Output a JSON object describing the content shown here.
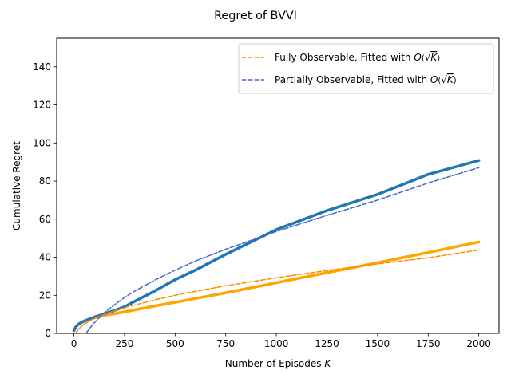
{
  "chart_data": {
    "type": "line",
    "title": "Regret of BVVI",
    "xlabel": "Number of Episodes",
    "xlabel_var": "K",
    "ylabel": "Cumulative Regret",
    "xlim": [
      -85,
      2100
    ],
    "ylim": [
      0,
      155
    ],
    "xticks": [
      0,
      250,
      500,
      750,
      1000,
      1250,
      1500,
      1750,
      2000
    ],
    "yticks": [
      0,
      20,
      40,
      60,
      80,
      100,
      120,
      140
    ],
    "grid": false,
    "legend_position": "top-right",
    "legend": [
      {
        "prefix": "Fully Observable, Fitted with ",
        "o": "O",
        "k": "K",
        "color": "#ff8c00",
        "style": "dashed"
      },
      {
        "prefix": "Partially Observable, Fitted with ",
        "o": "O",
        "k": "K",
        "color": "#4169c8",
        "style": "dashed"
      }
    ],
    "series": [
      {
        "kind": "observed",
        "color": "#ffa500",
        "x": [
          0,
          10,
          25,
          50,
          75,
          100,
          150,
          200,
          250,
          300,
          400,
          500,
          600,
          750,
          1000,
          1250,
          1500,
          1750,
          2000
        ],
        "y": [
          1.5,
          3.5,
          5.0,
          6.3,
          7.3,
          8.1,
          9.4,
          10.3,
          11.3,
          12.3,
          14.4,
          16.3,
          18.3,
          21.3,
          26.6,
          31.9,
          37.1,
          42.5,
          48.0
        ]
      },
      {
        "kind": "observed",
        "color": "#1f77b4",
        "x": [
          0,
          10,
          25,
          50,
          75,
          100,
          150,
          200,
          250,
          300,
          400,
          500,
          600,
          750,
          1000,
          1250,
          1500,
          1750,
          2000
        ],
        "y": [
          1.5,
          3.5,
          5.0,
          6.5,
          7.5,
          8.5,
          10.3,
          12.0,
          14.0,
          16.8,
          22.3,
          28.2,
          33.2,
          41.5,
          54.5,
          64.5,
          73.0,
          83.5,
          90.8
        ]
      },
      {
        "kind": "fit",
        "color": "#ff8c00",
        "x": [
          0,
          10,
          25,
          50,
          75,
          100,
          150,
          200,
          250,
          300,
          400,
          500,
          600,
          750,
          1000,
          1250,
          1500,
          1750,
          2000
        ],
        "y": [
          -3.2,
          0.4,
          2.5,
          4.8,
          6.4,
          7.8,
          10.0,
          11.8,
          13.5,
          14.9,
          17.6,
          20.0,
          22.1,
          25.0,
          29.2,
          33.0,
          36.5,
          39.7,
          43.8
        ]
      },
      {
        "kind": "fit",
        "color": "#4169c8",
        "x": [
          60,
          75,
          100,
          150,
          200,
          250,
          300,
          400,
          500,
          600,
          750,
          1000,
          1250,
          1500,
          1750,
          2000
        ],
        "y": [
          0,
          2.2,
          5.5,
          10.8,
          15.0,
          18.8,
          22.2,
          28.0,
          33.2,
          38.0,
          44.2,
          53.5,
          62.0,
          70.0,
          79.0,
          87.0
        ]
      }
    ]
  }
}
